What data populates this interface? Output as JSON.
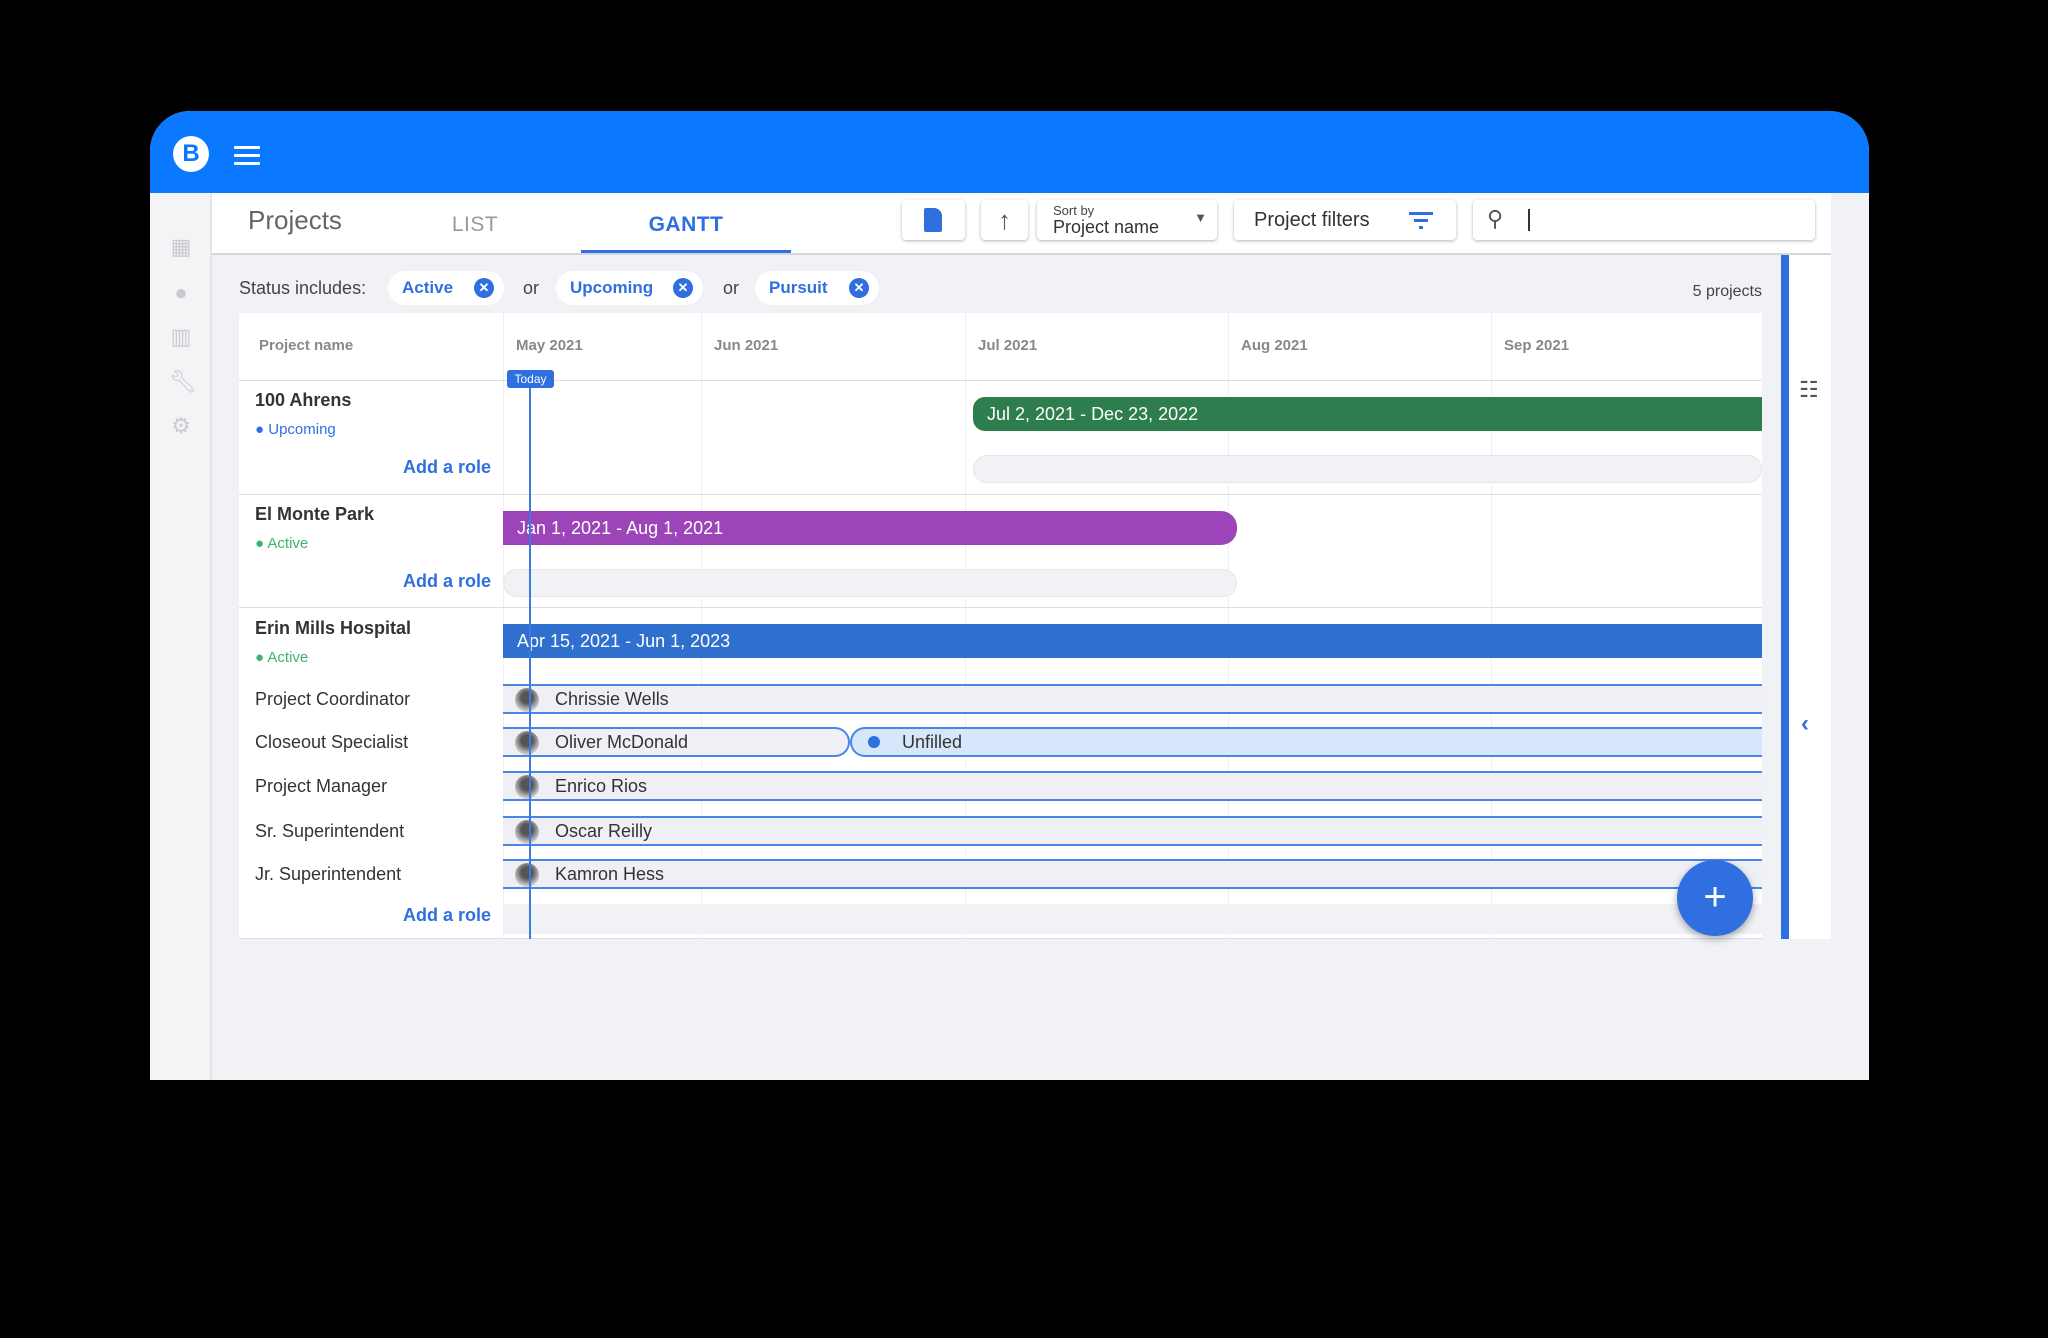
{
  "app": {
    "logo": "B",
    "colors": {
      "brand": "#0a78ff",
      "accent": "#2f6fe0",
      "upcoming": "#2e7d4f",
      "active_green": "#3cb371"
    }
  },
  "sidebar": {
    "icons": [
      "dashboard-icon",
      "person-icon",
      "building-icon",
      "wrench-icon",
      "gear-icon"
    ]
  },
  "topbar": {
    "title": "Projects",
    "tabs": [
      {
        "label": "LIST",
        "active": false
      },
      {
        "label": "GANTT",
        "active": true
      }
    ],
    "sort_label": "Sort by",
    "sort_value": "Project name",
    "filters_label": "Project filters",
    "search_value": ""
  },
  "filters": {
    "label": "Status includes:",
    "chips": [
      "Active",
      "Upcoming",
      "Pursuit"
    ],
    "joiner": "or",
    "count": "5 projects"
  },
  "gantt": {
    "name_header": "Project name",
    "months": [
      "May 2021",
      "Jun 2021",
      "Jul 2021",
      "Aug 2021",
      "Sep 2021"
    ],
    "today": "Today",
    "add_role": "Add a role",
    "projects": [
      {
        "name": "100 Ahrens",
        "status": "Upcoming",
        "range": "Jul 2, 2021 - Dec 23, 2022",
        "color": "#2e7d4f"
      },
      {
        "name": "El Monte Park",
        "status": "Active",
        "range": "Jan 1, 2021 - Aug 1, 2021",
        "color": "#9c45b8"
      },
      {
        "name": "Erin Mills Hospital",
        "status": "Active",
        "range": "Apr 15, 2021 - Jun 1, 2023",
        "color": "#2f6fce",
        "roles": [
          {
            "role": "Project Coordinator",
            "person": "Chrissie Wells"
          },
          {
            "role": "Closeout Specialist",
            "person": "Oliver McDonald",
            "unfilled": "Unfilled"
          },
          {
            "role": "Project Manager",
            "person": "Enrico Rios"
          },
          {
            "role": "Sr. Superintendent",
            "person": "Oscar Reilly"
          },
          {
            "role": "Jr. Superintendent",
            "person": "Kamron Hess"
          }
        ]
      }
    ]
  }
}
